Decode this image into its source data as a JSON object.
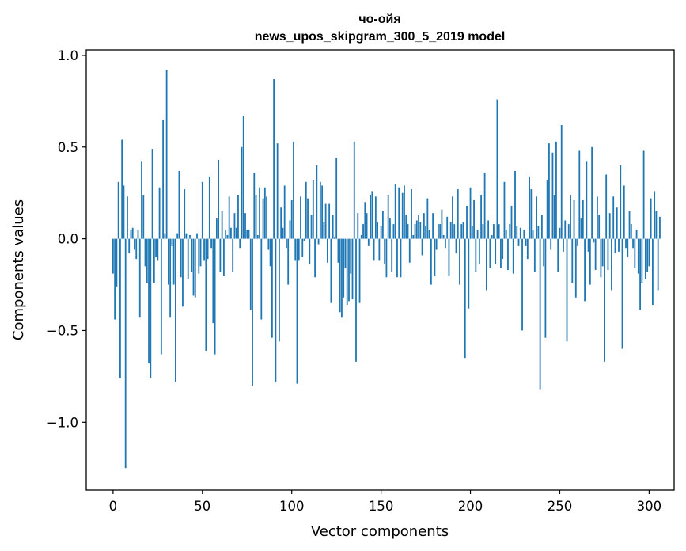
{
  "chart_data": {
    "type": "bar",
    "title_line1": "чо-ойя",
    "title_line2": "news_upos_skipgram_300_5_2019 model",
    "xlabel": "Vector components",
    "ylabel": "Components values",
    "xlim": [
      -15,
      314
    ],
    "ylim": [
      -1.37,
      1.03
    ],
    "xticks": [
      0,
      50,
      100,
      150,
      200,
      250,
      300
    ],
    "xtick_labels": [
      "0",
      "50",
      "100",
      "150",
      "200",
      "250",
      "300"
    ],
    "yticks": [
      -1.0,
      -0.5,
      0.0,
      0.5,
      1.0
    ],
    "ytick_labels": [
      "−1.0",
      "−0.5",
      "0.0",
      "0.5",
      "1.0"
    ],
    "bar_color": "#1f77b4",
    "values": [
      -0.19,
      -0.44,
      -0.26,
      0.31,
      -0.76,
      0.54,
      0.29,
      -1.25,
      0.23,
      -0.08,
      0.05,
      0.06,
      -0.06,
      -0.11,
      0.05,
      -0.43,
      0.42,
      0.24,
      -0.15,
      -0.24,
      -0.68,
      -0.76,
      0.49,
      -0.24,
      -0.1,
      -0.12,
      0.28,
      -0.63,
      0.65,
      0.03,
      0.92,
      -0.25,
      -0.43,
      -0.04,
      -0.25,
      -0.78,
      0.03,
      0.37,
      -0.21,
      -0.37,
      0.27,
      0.03,
      -0.22,
      0.02,
      -0.18,
      -0.31,
      -0.32,
      0.03,
      -0.19,
      -0.15,
      0.31,
      -0.12,
      -0.61,
      -0.11,
      0.34,
      -0.05,
      -0.46,
      -0.63,
      0.11,
      0.43,
      -0.18,
      0.15,
      -0.2,
      0.05,
      0.02,
      0.23,
      0.06,
      -0.18,
      0.14,
      0.06,
      0.24,
      -0.05,
      0.5,
      0.67,
      0.14,
      0.05,
      0.05,
      -0.39,
      -0.8,
      0.36,
      0.24,
      0.02,
      0.28,
      -0.44,
      0.22,
      0.28,
      0.23,
      -0.06,
      -0.15,
      -0.54,
      0.87,
      -0.78,
      0.52,
      -0.56,
      0.17,
      0.06,
      0.29,
      -0.05,
      -0.25,
      0.1,
      0.21,
      0.53,
      -0.12,
      -0.79,
      -0.12,
      0.23,
      -0.1,
      -0.01,
      0.31,
      0.22,
      -0.14,
      0.13,
      0.32,
      -0.21,
      0.4,
      -0.03,
      0.31,
      0.29,
      0.09,
      0.19,
      -0.13,
      0.19,
      -0.35,
      0.13,
      0.01,
      0.44,
      -0.13,
      -0.4,
      -0.43,
      -0.32,
      -0.16,
      -0.36,
      -0.34,
      -0.19,
      -0.33,
      0.53,
      -0.67,
      0.14,
      -0.35,
      0.02,
      0.08,
      0.2,
      0.14,
      -0.04,
      0.24,
      0.26,
      -0.12,
      0.23,
      0.09,
      -0.12,
      0.07,
      0.15,
      -0.14,
      -0.21,
      0.24,
      0.11,
      -0.18,
      0.08,
      0.3,
      -0.21,
      0.28,
      -0.21,
      0.25,
      0.29,
      0.13,
      0.08,
      -0.13,
      0.27,
      0.02,
      0.08,
      0.1,
      0.13,
      0.09,
      -0.09,
      0.14,
      0.07,
      0.22,
      0.05,
      -0.25,
      0.14,
      -0.2,
      -0.06,
      0.08,
      0.08,
      0.16,
      0.02,
      -0.05,
      0.12,
      -0.2,
      0.09,
      0.23,
      0.08,
      -0.08,
      0.27,
      -0.25,
      0.08,
      0.09,
      -0.65,
      0.18,
      -0.38,
      0.28,
      0.07,
      0.21,
      -0.18,
      0.05,
      -0.14,
      0.24,
      0.08,
      0.36,
      -0.28,
      0.1,
      -0.16,
      0.02,
      0.08,
      -0.14,
      0.76,
      0.08,
      -0.16,
      -0.11,
      0.31,
      0.05,
      -0.17,
      0.08,
      0.18,
      -0.19,
      0.37,
      0.07,
      -0.04,
      0.06,
      -0.5,
      0.05,
      -0.04,
      -0.11,
      0.34,
      0.27,
      0.05,
      -0.18,
      0.23,
      0.07,
      -0.82,
      0.13,
      -0.15,
      -0.54,
      0.32,
      0.52,
      -0.06,
      0.47,
      0.24,
      0.53,
      -0.18,
      0.06,
      0.62,
      -0.07,
      0.1,
      -0.56,
      0.08,
      0.24,
      -0.24,
      0.21,
      -0.32,
      -0.04,
      0.48,
      0.11,
      0.21,
      -0.34,
      0.42,
      -0.07,
      -0.25,
      0.5,
      -0.02,
      -0.17,
      0.23,
      0.13,
      -0.21,
      -0.15,
      -0.67,
      0.35,
      -0.17,
      0.14,
      -0.28,
      0.23,
      -0.08,
      0.17,
      -0.07,
      0.4,
      -0.6,
      0.29,
      -0.05,
      -0.1,
      0.15,
      0.08,
      -0.05,
      -0.16,
      0.05,
      -0.19,
      -0.39,
      -0.24,
      0.48,
      -0.22,
      -0.18,
      -0.15,
      0.22,
      -0.36,
      0.26,
      0.15,
      -0.28,
      0.12
    ]
  }
}
